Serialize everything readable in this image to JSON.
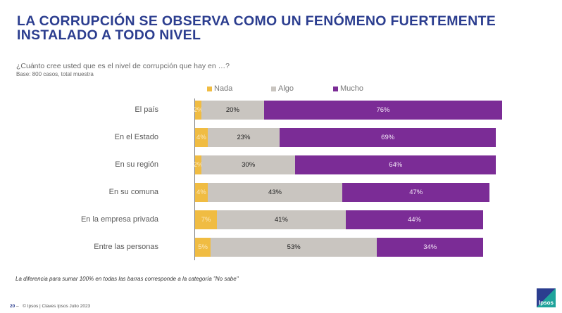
{
  "title": "LA CORRUPCIÓN SE OBSERVA COMO UN FENÓMENO FUERTEMENTE INSTALADO A TODO NIVEL",
  "question": "¿Cuánto cree usted que es el nivel de corrupción que hay en …?",
  "base": "Base: 800 casos, total muestra",
  "note": "La diferencia para sumar 100% en todas las barras corresponde a la categoría \"No sabe\"",
  "footer": {
    "page": "20",
    "dash": "–",
    "text": "© Ipsos | Claves Ipsos Julio 2023"
  },
  "logo": "Ipsos",
  "colors": {
    "nada": "#f0bc42",
    "algo": "#c9c5c0",
    "mucho": "#7b2c96",
    "title": "#2b3d8f"
  },
  "chart_data": {
    "type": "bar",
    "orientation": "horizontal-stacked",
    "categories": [
      "El país",
      "En el Estado",
      "En su región",
      "En su comuna",
      "En la empresa privada",
      "Entre las personas"
    ],
    "series": [
      {
        "name": "Nada",
        "values": [
          2,
          4,
          2,
          4,
          7,
          5
        ]
      },
      {
        "name": "Algo",
        "values": [
          20,
          23,
          30,
          43,
          41,
          53
        ]
      },
      {
        "name": "Mucho",
        "values": [
          76,
          69,
          64,
          47,
          44,
          34
        ]
      }
    ],
    "labels": [
      [
        "2%",
        "20%",
        "76%"
      ],
      [
        "4%",
        "23%",
        "69%"
      ],
      [
        "2%",
        "30%",
        "64%"
      ],
      [
        "4%",
        "43%",
        "47%"
      ],
      [
        "7%",
        "41%",
        "44%"
      ],
      [
        "5%",
        "53%",
        "34%"
      ]
    ],
    "xlim": [
      0,
      100
    ],
    "legend": "top",
    "title": "",
    "xlabel": "",
    "ylabel": ""
  }
}
